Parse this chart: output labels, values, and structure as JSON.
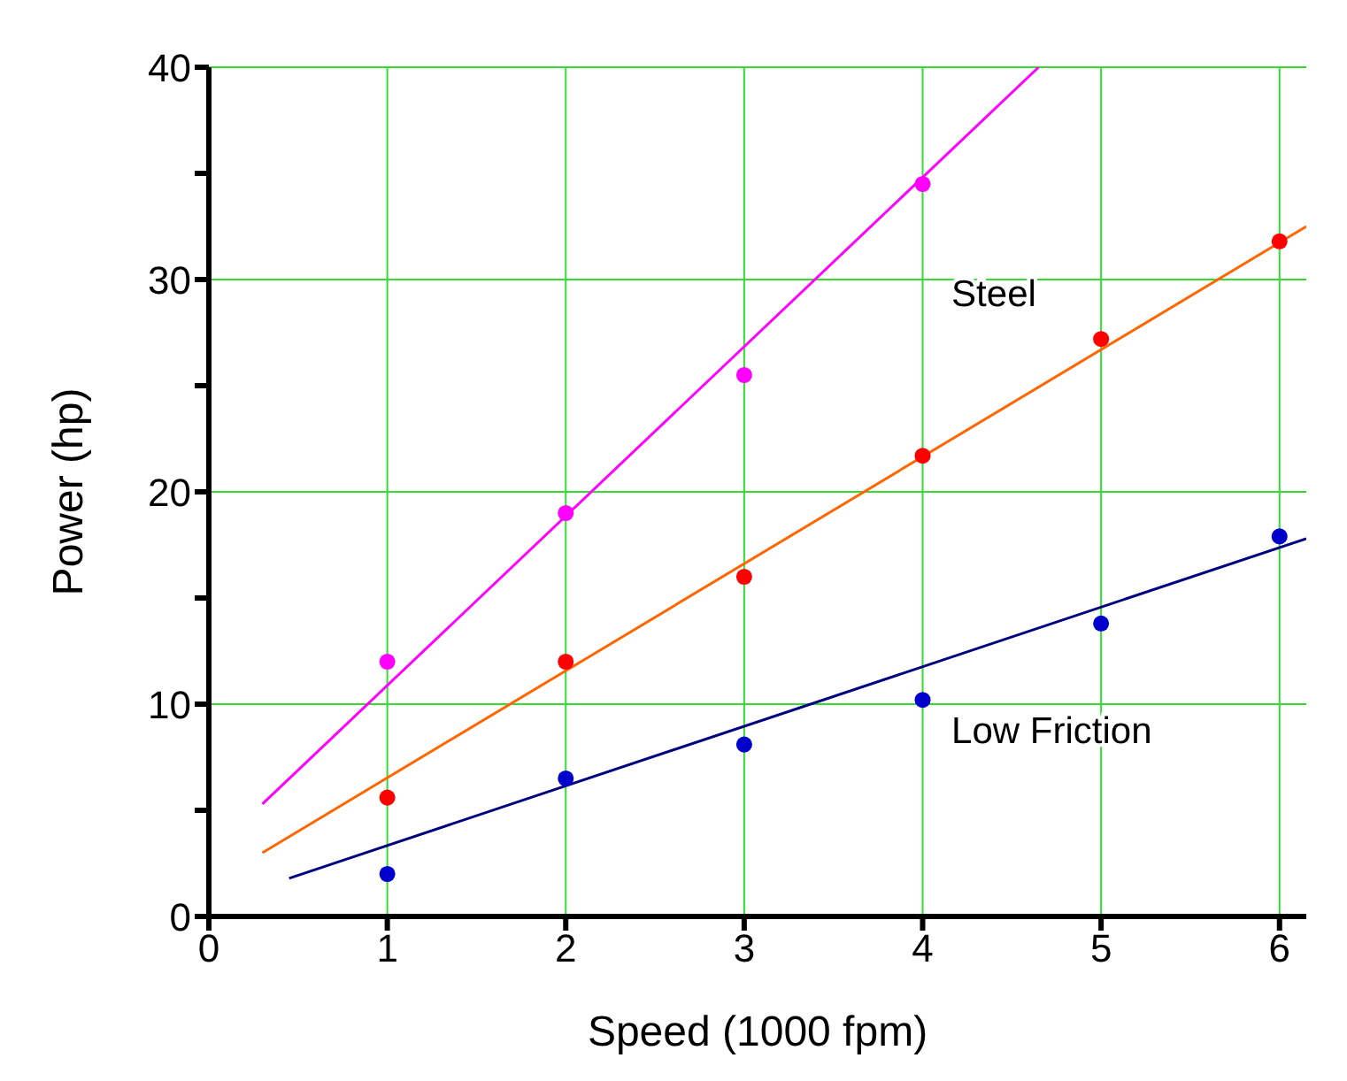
{
  "chart_data": {
    "type": "scatter",
    "xlabel": "Speed (1000 fpm)",
    "ylabel": "Power (hp)",
    "xlim": [
      0,
      6.15
    ],
    "xticks": [
      0,
      1,
      2,
      3,
      4,
      5,
      6
    ],
    "ylim": [
      0,
      40
    ],
    "yticks": [
      0,
      {
        "value": 5,
        "label": null
      },
      10,
      {
        "value": 15,
        "label": null
      },
      20,
      {
        "value": 25,
        "label": null
      },
      30,
      {
        "value": 35,
        "label": null
      },
      40
    ],
    "grid": true,
    "legend": false,
    "series": [
      {
        "marker": "circle",
        "color": "#ff00ff",
        "x": [
          1,
          2,
          3,
          4
        ],
        "values": [
          12,
          19,
          25.5,
          34.5
        ]
      },
      {
        "type": "line",
        "marker": "none",
        "color": "#ff00ff",
        "x": [
          0.3,
          4.65
        ],
        "values": [
          5.3,
          40
        ]
      },
      {
        "marker": "circle",
        "name": "Steel",
        "color": "#ff0000",
        "x": [
          1,
          2,
          3,
          4,
          5,
          6
        ],
        "values": [
          5.6,
          12,
          16,
          21.7,
          27.2,
          31.8
        ]
      },
      {
        "type": "line",
        "marker": "none",
        "color": "#ff6600",
        "x": [
          0.3,
          6.15
        ],
        "values": [
          3,
          32.5
        ]
      },
      {
        "marker": "circle",
        "name": "Low Friction",
        "color": "#0000cc",
        "x": [
          1,
          2,
          3,
          4,
          5,
          6
        ],
        "values": [
          2,
          6.5,
          8.1,
          10.2,
          13.8,
          17.9
        ]
      },
      {
        "type": "line",
        "marker": "none",
        "color": "#000080",
        "x": [
          0.45,
          6.15
        ],
        "values": [
          1.8,
          17.8
        ]
      }
    ]
  }
}
